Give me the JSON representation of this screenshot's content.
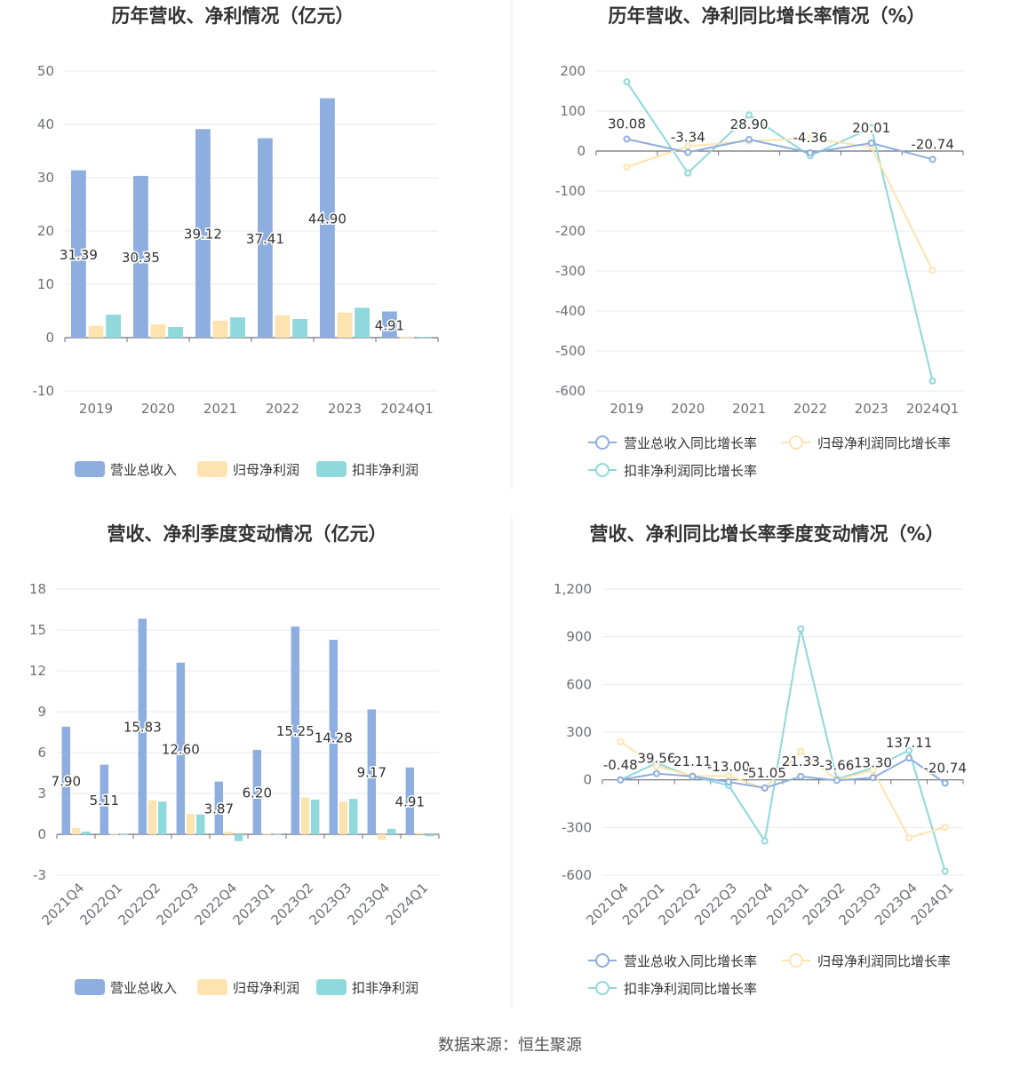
{
  "colors": {
    "revenue": "#8eaedf",
    "parent_profit": "#fde3b0",
    "deducted_profit": "#8fd8db",
    "grid": "#e6e9f0",
    "axis": "#6e7079",
    "divider": "#e6e9f0"
  },
  "footer": {
    "source": "数据来源：恒生聚源"
  },
  "chart_data": [
    {
      "id": "annual-amount",
      "type": "bar",
      "title": "历年营收、净利情况（亿元）",
      "categories": [
        "2019",
        "2020",
        "2021",
        "2022",
        "2023",
        "2024Q1"
      ],
      "yticks": [
        -10,
        0,
        10,
        20,
        30,
        40,
        50
      ],
      "ylim": [
        -10,
        50
      ],
      "series": [
        {
          "name": "营业总收入",
          "color_key": "revenue",
          "values": [
            31.39,
            30.35,
            39.12,
            37.41,
            44.9,
            4.91
          ],
          "labels": [
            "31.39",
            "30.35",
            "39.12",
            "37.41",
            "44.90",
            "4.91"
          ]
        },
        {
          "name": "归母净利润",
          "color_key": "parent_profit",
          "values": [
            2.2,
            2.5,
            3.2,
            4.2,
            4.7,
            0.1
          ]
        },
        {
          "name": "扣非净利润",
          "color_key": "deducted_profit",
          "values": [
            4.3,
            2.0,
            3.8,
            3.5,
            5.6,
            0.15
          ]
        }
      ]
    },
    {
      "id": "annual-growth",
      "type": "line",
      "title": "历年营收、净利同比增长率情况（%）",
      "categories": [
        "2019",
        "2020",
        "2021",
        "2022",
        "2023",
        "2024Q1"
      ],
      "yticks": [
        -600,
        -500,
        -400,
        -300,
        -200,
        -100,
        0,
        100,
        200
      ],
      "ylim": [
        -600,
        200
      ],
      "series": [
        {
          "name": "营业总收入同比增长率",
          "color_key": "revenue",
          "values": [
            30.08,
            -3.34,
            28.9,
            -4.36,
            20.01,
            -20.74
          ],
          "labels": [
            "30.08",
            "-3.34",
            "28.90",
            "-4.36",
            "20.01",
            "-20.74"
          ]
        },
        {
          "name": "归母净利润同比增长率",
          "color_key": "parent_profit",
          "values": [
            -40,
            12,
            25,
            32,
            10,
            -298
          ]
        },
        {
          "name": "扣非净利润同比增长率",
          "color_key": "deducted_profit",
          "values": [
            173,
            -55,
            90,
            -12,
            58,
            -575
          ]
        }
      ]
    },
    {
      "id": "quarterly-amount",
      "type": "bar",
      "title": "营收、净利季度变动情况（亿元）",
      "categories": [
        "2021Q4",
        "2022Q1",
        "2022Q2",
        "2022Q3",
        "2022Q4",
        "2023Q1",
        "2023Q2",
        "2023Q3",
        "2023Q4",
        "2024Q1"
      ],
      "yticks": [
        -3,
        0,
        3,
        6,
        9,
        12,
        15,
        18
      ],
      "ylim": [
        -3,
        18
      ],
      "series": [
        {
          "name": "营业总收入",
          "color_key": "revenue",
          "values": [
            7.9,
            5.11,
            15.83,
            12.6,
            3.87,
            6.2,
            15.25,
            14.28,
            9.17,
            4.91
          ],
          "labels": [
            "7.90",
            "5.11",
            "15.83",
            "12.60",
            "3.87",
            "6.20",
            "15.25",
            "14.28",
            "9.17",
            "4.91"
          ]
        },
        {
          "name": "归母净利润",
          "color_key": "parent_profit",
          "values": [
            0.45,
            0.05,
            2.5,
            1.5,
            0.2,
            0.05,
            2.7,
            2.4,
            -0.4,
            0.1
          ]
        },
        {
          "name": "扣非净利润",
          "color_key": "deducted_profit",
          "values": [
            0.2,
            0.02,
            2.4,
            1.45,
            -0.5,
            0.02,
            2.55,
            2.6,
            0.4,
            -0.15
          ]
        }
      ]
    },
    {
      "id": "quarterly-growth",
      "type": "line",
      "title": "营收、净利同比增长率季度变动情况（%）",
      "categories": [
        "2021Q4",
        "2022Q1",
        "2022Q2",
        "2022Q3",
        "2022Q4",
        "2023Q1",
        "2023Q2",
        "2023Q3",
        "2023Q4",
        "2024Q1"
      ],
      "yticks": [
        -600,
        -300,
        0,
        300,
        600,
        900,
        1200
      ],
      "ylim": [
        -600,
        1200
      ],
      "ytick_labels": [
        "-600",
        "-300",
        "0",
        "300",
        "600",
        "900",
        "1,200"
      ],
      "series": [
        {
          "name": "营业总收入同比增长率",
          "color_key": "revenue",
          "values": [
            -0.48,
            39.56,
            21.11,
            -13.0,
            -51.05,
            21.33,
            -3.66,
            13.3,
            137.11,
            -20.74
          ],
          "labels": [
            "-0.48",
            "39.56",
            "21.11",
            "-13.00",
            "-51.05",
            "21.33",
            "-3.66",
            "13.30",
            "137.11",
            "-20.74"
          ]
        },
        {
          "name": "归母净利润同比增长率",
          "color_key": "parent_profit",
          "values": [
            240,
            85,
            25,
            25,
            -55,
            180,
            0,
            60,
            -365,
            -298
          ]
        },
        {
          "name": "扣非净利润同比增长率",
          "color_key": "deducted_profit",
          "values": [
            0,
            105,
            20,
            -35,
            -385,
            950,
            5,
            75,
            185,
            -575
          ]
        }
      ]
    }
  ]
}
